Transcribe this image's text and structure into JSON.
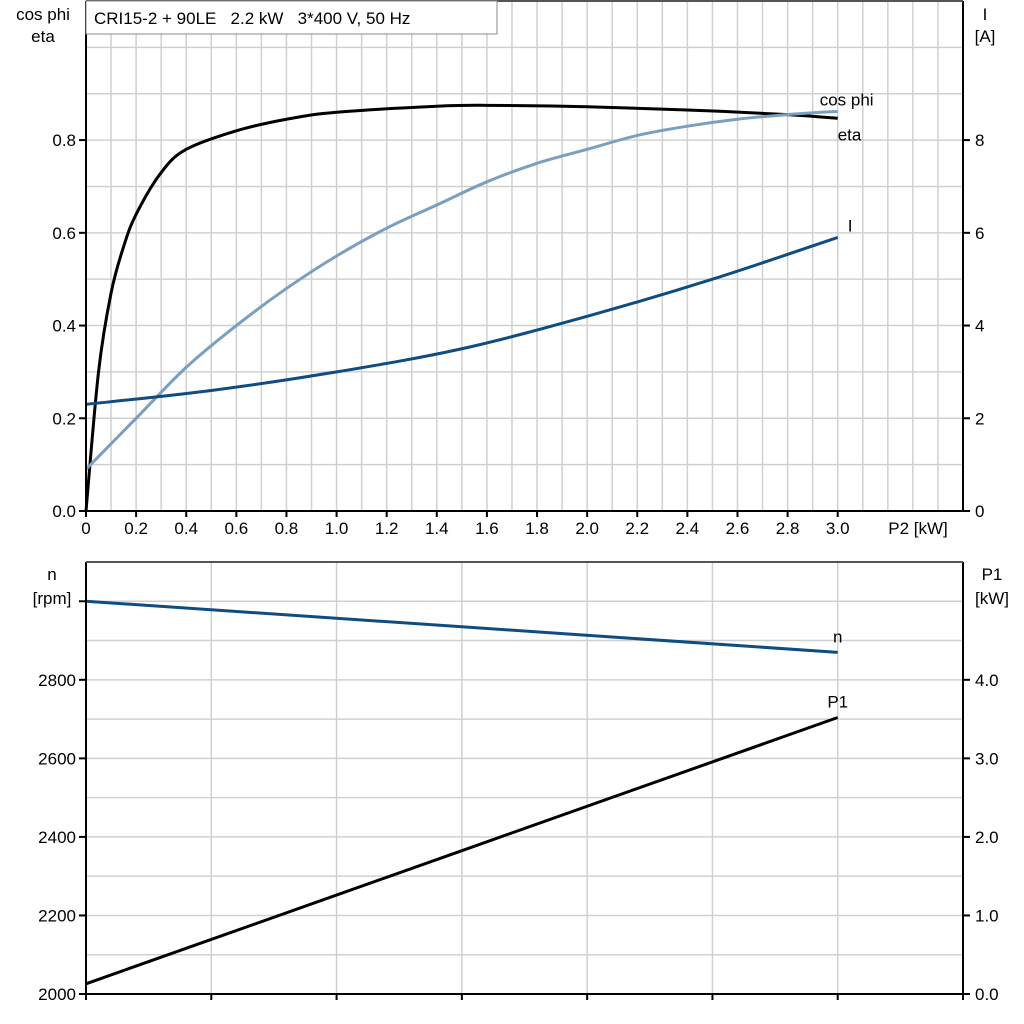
{
  "chart_data": [
    {
      "type": "line",
      "title": "CRI15-2 + 90LE   2.2 kW   3*400 V, 50 Hz",
      "xlabel": "P2 [kW]",
      "ylabel_left": [
        "cos phi",
        "eta"
      ],
      "ylabel_right": [
        "I",
        "[A]"
      ],
      "xlim": [
        0,
        3.5
      ],
      "ylim_left": [
        0,
        1.1
      ],
      "ylim_right": [
        0,
        11
      ],
      "grid": true,
      "x_ticks": [
        "0",
        "0.2",
        "0.4",
        "0.6",
        "0.8",
        "1.0",
        "1.2",
        "1.4",
        "1.6",
        "1.8",
        "2.0",
        "2.2",
        "2.4",
        "2.6",
        "2.8",
        "3.0"
      ],
      "y_left_ticks": [
        "0.0",
        "0.2",
        "0.4",
        "0.6",
        "0.8"
      ],
      "y_right_ticks": [
        "0",
        "2",
        "4",
        "6",
        "8"
      ],
      "series": [
        {
          "name": "eta",
          "axis": "left",
          "color": "#000000",
          "x": [
            0,
            0.05,
            0.1,
            0.15,
            0.2,
            0.3,
            0.4,
            0.6,
            0.8,
            1.0,
            1.4,
            1.6,
            2.0,
            2.4,
            2.8,
            3.0
          ],
          "y": [
            0,
            0.3,
            0.47,
            0.57,
            0.64,
            0.73,
            0.78,
            0.82,
            0.845,
            0.86,
            0.873,
            0.875,
            0.872,
            0.865,
            0.855,
            0.847
          ]
        },
        {
          "name": "cos phi",
          "axis": "left",
          "color": "#7a9fc0",
          "x": [
            0,
            0.2,
            0.4,
            0.6,
            0.8,
            1.0,
            1.2,
            1.4,
            1.6,
            1.8,
            2.0,
            2.2,
            2.4,
            2.6,
            2.8,
            3.0
          ],
          "y": [
            0.09,
            0.2,
            0.31,
            0.4,
            0.48,
            0.55,
            0.61,
            0.66,
            0.71,
            0.75,
            0.78,
            0.81,
            0.83,
            0.845,
            0.855,
            0.862
          ]
        },
        {
          "name": "I",
          "axis": "right",
          "color": "#0f4c81",
          "x": [
            0,
            0.5,
            1.0,
            1.5,
            2.0,
            2.5,
            3.0
          ],
          "y": [
            2.3,
            2.6,
            3.0,
            3.5,
            4.2,
            5.0,
            5.9
          ]
        }
      ]
    },
    {
      "type": "line",
      "xlim": [
        0,
        3.5
      ],
      "ylabel_left": [
        "n",
        "[rpm]"
      ],
      "ylabel_right": [
        "P1",
        "[kW]"
      ],
      "ylim_left": [
        2000,
        3100
      ],
      "ylim_right": [
        0,
        5.5
      ],
      "grid": true,
      "y_left_ticks": [
        "2000",
        "2200",
        "2400",
        "2600",
        "2800"
      ],
      "y_right_ticks": [
        "0.0",
        "1.0",
        "2.0",
        "3.0",
        "4.0"
      ],
      "series": [
        {
          "name": "n",
          "axis": "left",
          "color": "#0f4c81",
          "x": [
            0,
            3.0
          ],
          "y": [
            3000,
            2870
          ]
        },
        {
          "name": "P1",
          "axis": "right",
          "color": "#000000",
          "x": [
            0,
            3.0
          ],
          "y": [
            0.13,
            3.52
          ]
        }
      ]
    }
  ]
}
